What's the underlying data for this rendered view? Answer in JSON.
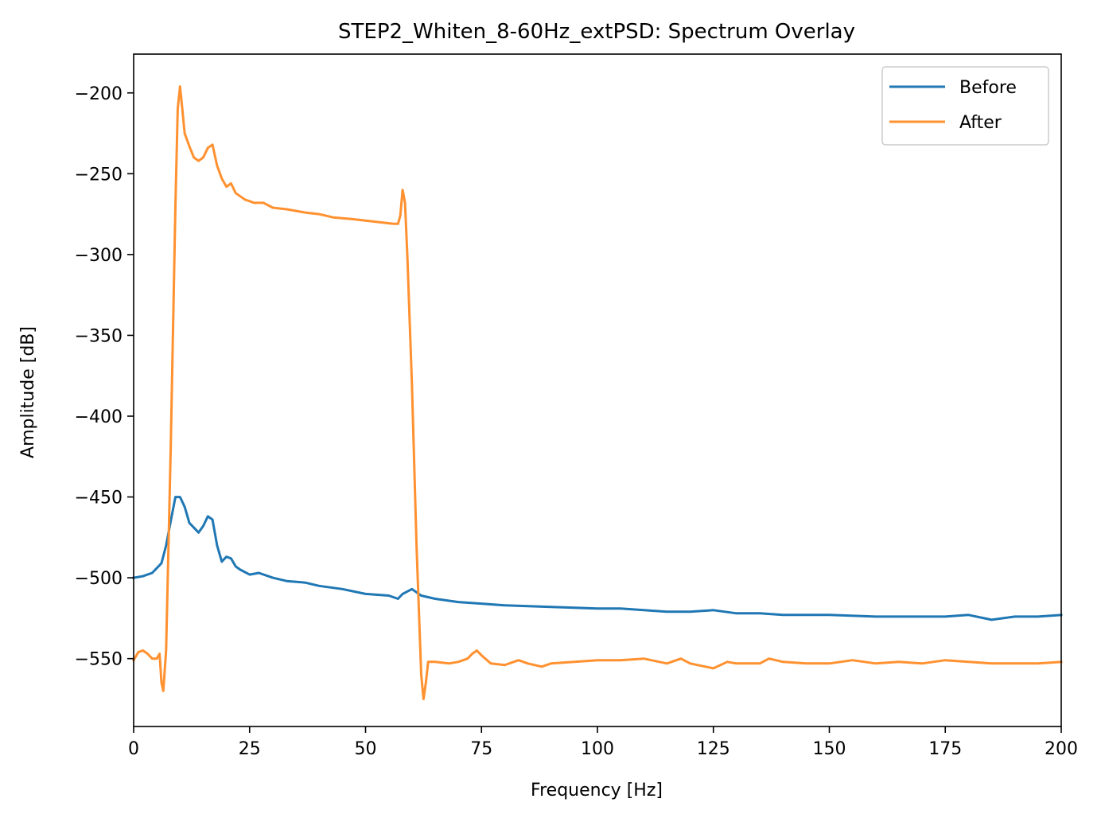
{
  "chart_data": {
    "type": "line",
    "title": "STEP2_Whiten_8-60Hz_extPSD: Spectrum Overlay",
    "xlabel": "Frequency [Hz]",
    "ylabel": "Amplitude [dB]",
    "xlim": [
      0,
      200
    ],
    "ylim": [
      -592,
      -176
    ],
    "xticks": [
      0,
      25,
      50,
      75,
      100,
      125,
      150,
      175,
      200
    ],
    "xtick_labels": [
      "0",
      "25",
      "50",
      "75",
      "100",
      "125",
      "150",
      "175",
      "200"
    ],
    "yticks": [
      -200,
      -250,
      -300,
      -350,
      -400,
      -450,
      -500,
      -550
    ],
    "ytick_labels": [
      "−200",
      "−250",
      "−300",
      "−350",
      "−400",
      "−450",
      "−500",
      "−550"
    ],
    "grid": false,
    "legend": "top-right",
    "series": [
      {
        "name": "Before",
        "color": "#1f77b4",
        "points": [
          [
            0,
            -500
          ],
          [
            2,
            -499
          ],
          [
            4,
            -497
          ],
          [
            6,
            -491
          ],
          [
            7,
            -480
          ],
          [
            8,
            -465
          ],
          [
            9,
            -450
          ],
          [
            10,
            -450
          ],
          [
            11,
            -456
          ],
          [
            12,
            -466
          ],
          [
            13,
            -469
          ],
          [
            14,
            -472
          ],
          [
            15,
            -468
          ],
          [
            16,
            -462
          ],
          [
            17,
            -464
          ],
          [
            18,
            -480
          ],
          [
            19,
            -490
          ],
          [
            20,
            -487
          ],
          [
            21,
            -488
          ],
          [
            22,
            -493
          ],
          [
            23,
            -495
          ],
          [
            25,
            -498
          ],
          [
            27,
            -497
          ],
          [
            30,
            -500
          ],
          [
            33,
            -502
          ],
          [
            37,
            -503
          ],
          [
            40,
            -505
          ],
          [
            45,
            -507
          ],
          [
            50,
            -510
          ],
          [
            55,
            -511
          ],
          [
            57,
            -513
          ],
          [
            58,
            -510
          ],
          [
            60,
            -507
          ],
          [
            62,
            -511
          ],
          [
            65,
            -513
          ],
          [
            70,
            -515
          ],
          [
            75,
            -516
          ],
          [
            80,
            -517
          ],
          [
            90,
            -518
          ],
          [
            100,
            -519
          ],
          [
            105,
            -519
          ],
          [
            110,
            -520
          ],
          [
            115,
            -521
          ],
          [
            120,
            -521
          ],
          [
            125,
            -520
          ],
          [
            130,
            -522
          ],
          [
            135,
            -522
          ],
          [
            140,
            -523
          ],
          [
            145,
            -523
          ],
          [
            150,
            -523
          ],
          [
            160,
            -524
          ],
          [
            170,
            -524
          ],
          [
            175,
            -524
          ],
          [
            180,
            -523
          ],
          [
            185,
            -526
          ],
          [
            190,
            -524
          ],
          [
            195,
            -524
          ],
          [
            200,
            -523
          ]
        ]
      },
      {
        "name": "After",
        "color": "#ff9130",
        "points": [
          [
            0,
            -551
          ],
          [
            1,
            -546
          ],
          [
            2,
            -545
          ],
          [
            3,
            -547
          ],
          [
            4,
            -550
          ],
          [
            5,
            -550
          ],
          [
            5.6,
            -547
          ],
          [
            6,
            -565
          ],
          [
            6.4,
            -570
          ],
          [
            7,
            -545
          ],
          [
            8,
            -420
          ],
          [
            9,
            -270
          ],
          [
            9.5,
            -210
          ],
          [
            10,
            -196
          ],
          [
            10.5,
            -210
          ],
          [
            11,
            -225
          ],
          [
            12,
            -233
          ],
          [
            13,
            -240
          ],
          [
            14,
            -242
          ],
          [
            15,
            -240
          ],
          [
            16,
            -234
          ],
          [
            17,
            -232
          ],
          [
            18,
            -245
          ],
          [
            19,
            -253
          ],
          [
            20,
            -258
          ],
          [
            21,
            -256
          ],
          [
            22,
            -262
          ],
          [
            24,
            -266
          ],
          [
            26,
            -268
          ],
          [
            28,
            -268
          ],
          [
            30,
            -271
          ],
          [
            33,
            -272
          ],
          [
            37,
            -274
          ],
          [
            40,
            -275
          ],
          [
            43,
            -277
          ],
          [
            47,
            -278
          ],
          [
            50,
            -279
          ],
          [
            53,
            -280
          ],
          [
            56,
            -281
          ],
          [
            57,
            -281
          ],
          [
            57.5,
            -276
          ],
          [
            58,
            -260
          ],
          [
            58.5,
            -268
          ],
          [
            59,
            -300
          ],
          [
            60,
            -380
          ],
          [
            61,
            -480
          ],
          [
            62,
            -560
          ],
          [
            62.5,
            -575
          ],
          [
            63,
            -565
          ],
          [
            63.5,
            -552
          ],
          [
            65,
            -552
          ],
          [
            68,
            -553
          ],
          [
            70,
            -552
          ],
          [
            72,
            -550
          ],
          [
            73,
            -547
          ],
          [
            74,
            -545
          ],
          [
            75,
            -548
          ],
          [
            77,
            -553
          ],
          [
            80,
            -554
          ],
          [
            83,
            -551
          ],
          [
            85,
            -553
          ],
          [
            88,
            -555
          ],
          [
            90,
            -553
          ],
          [
            95,
            -552
          ],
          [
            100,
            -551
          ],
          [
            105,
            -551
          ],
          [
            110,
            -550
          ],
          [
            115,
            -553
          ],
          [
            118,
            -550
          ],
          [
            120,
            -553
          ],
          [
            125,
            -556
          ],
          [
            128,
            -552
          ],
          [
            130,
            -553
          ],
          [
            135,
            -553
          ],
          [
            137,
            -550
          ],
          [
            140,
            -552
          ],
          [
            145,
            -553
          ],
          [
            150,
            -553
          ],
          [
            155,
            -551
          ],
          [
            160,
            -553
          ],
          [
            165,
            -552
          ],
          [
            170,
            -553
          ],
          [
            175,
            -551
          ],
          [
            180,
            -552
          ],
          [
            185,
            -553
          ],
          [
            190,
            -553
          ],
          [
            195,
            -553
          ],
          [
            200,
            -552
          ]
        ]
      }
    ]
  }
}
